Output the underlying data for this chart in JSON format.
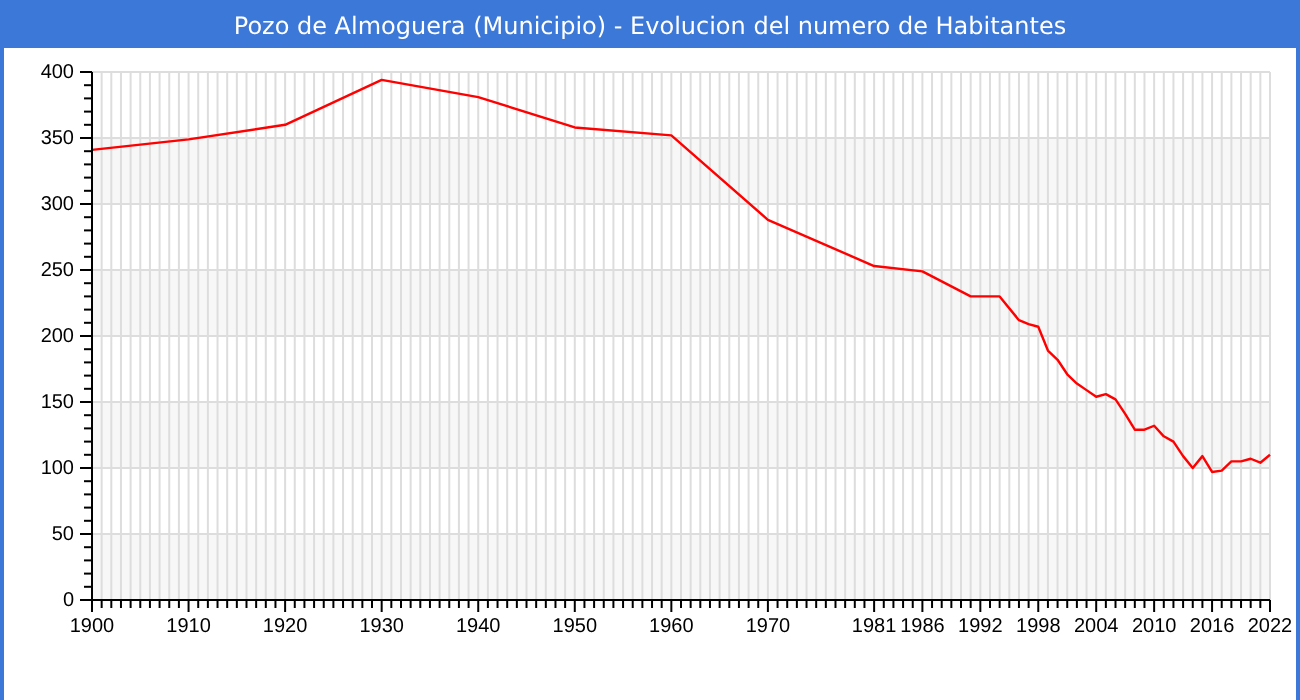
{
  "chart_data": {
    "type": "line",
    "title": "Pozo de Almoguera (Municipio) - Evolucion del numero de Habitantes",
    "x": [
      1900,
      1910,
      1920,
      1930,
      1940,
      1950,
      1960,
      1970,
      1981,
      1986,
      1991,
      1994,
      1996,
      1997,
      1998,
      1999,
      2000,
      2001,
      2002,
      2003,
      2004,
      2005,
      2006,
      2007,
      2008,
      2009,
      2010,
      2011,
      2012,
      2013,
      2014,
      2015,
      2016,
      2017,
      2018,
      2019,
      2020,
      2021,
      2022
    ],
    "series": [
      {
        "color": "#ff0000",
        "values": [
          341,
          349,
          360,
          394,
          381,
          358,
          352,
          288,
          253,
          249,
          230,
          230,
          212,
          209,
          207,
          189,
          182,
          171,
          164,
          159,
          154,
          156,
          152,
          141,
          129,
          129,
          132,
          124,
          120,
          109,
          100,
          109,
          97,
          98,
          105,
          105,
          107,
          104,
          110
        ]
      }
    ],
    "xlim": [
      1900,
      2022
    ],
    "xticks": [
      1900,
      {
        "value": 1901,
        "label": null
      },
      {
        "value": 1902,
        "label": null
      },
      {
        "value": 1903,
        "label": null
      },
      {
        "value": 1904,
        "label": null
      },
      {
        "value": 1905,
        "label": null
      },
      {
        "value": 1906,
        "label": null
      },
      {
        "value": 1907,
        "label": null
      },
      {
        "value": 1908,
        "label": null
      },
      {
        "value": 1909,
        "label": null
      },
      1910,
      {
        "value": 1911,
        "label": null
      },
      {
        "value": 1912,
        "label": null
      },
      {
        "value": 1913,
        "label": null
      },
      {
        "value": 1914,
        "label": null
      },
      {
        "value": 1915,
        "label": null
      },
      {
        "value": 1916,
        "label": null
      },
      {
        "value": 1917,
        "label": null
      },
      {
        "value": 1918,
        "label": null
      },
      {
        "value": 1919,
        "label": null
      },
      1920,
      {
        "value": 1921,
        "label": null
      },
      {
        "value": 1922,
        "label": null
      },
      {
        "value": 1923,
        "label": null
      },
      {
        "value": 1924,
        "label": null
      },
      {
        "value": 1925,
        "label": null
      },
      {
        "value": 1926,
        "label": null
      },
      {
        "value": 1927,
        "label": null
      },
      {
        "value": 1928,
        "label": null
      },
      {
        "value": 1929,
        "label": null
      },
      1930,
      {
        "value": 1931,
        "label": null
      },
      {
        "value": 1932,
        "label": null
      },
      {
        "value": 1933,
        "label": null
      },
      {
        "value": 1934,
        "label": null
      },
      {
        "value": 1935,
        "label": null
      },
      {
        "value": 1936,
        "label": null
      },
      {
        "value": 1937,
        "label": null
      },
      {
        "value": 1938,
        "label": null
      },
      {
        "value": 1939,
        "label": null
      },
      1940,
      {
        "value": 1941,
        "label": null
      },
      {
        "value": 1942,
        "label": null
      },
      {
        "value": 1943,
        "label": null
      },
      {
        "value": 1944,
        "label": null
      },
      {
        "value": 1945,
        "label": null
      },
      {
        "value": 1946,
        "label": null
      },
      {
        "value": 1947,
        "label": null
      },
      {
        "value": 1948,
        "label": null
      },
      {
        "value": 1949,
        "label": null
      },
      1950,
      {
        "value": 1951,
        "label": null
      },
      {
        "value": 1952,
        "label": null
      },
      {
        "value": 1953,
        "label": null
      },
      {
        "value": 1954,
        "label": null
      },
      {
        "value": 1955,
        "label": null
      },
      {
        "value": 1956,
        "label": null
      },
      {
        "value": 1957,
        "label": null
      },
      {
        "value": 1958,
        "label": null
      },
      {
        "value": 1959,
        "label": null
      },
      1960,
      {
        "value": 1961,
        "label": null
      },
      {
        "value": 1962,
        "label": null
      },
      {
        "value": 1963,
        "label": null
      },
      {
        "value": 1964,
        "label": null
      },
      {
        "value": 1965,
        "label": null
      },
      {
        "value": 1966,
        "label": null
      },
      {
        "value": 1967,
        "label": null
      },
      {
        "value": 1968,
        "label": null
      },
      {
        "value": 1969,
        "label": null
      },
      1970,
      {
        "value": 1971,
        "label": null
      },
      {
        "value": 1972,
        "label": null
      },
      {
        "value": 1973,
        "label": null
      },
      {
        "value": 1974,
        "label": null
      },
      {
        "value": 1975,
        "label": null
      },
      {
        "value": 1976,
        "label": null
      },
      {
        "value": 1977,
        "label": null
      },
      {
        "value": 1978,
        "label": null
      },
      {
        "value": 1979,
        "label": null
      },
      {
        "value": 1980,
        "label": null
      },
      1981,
      {
        "value": 1982,
        "label": null
      },
      {
        "value": 1983,
        "label": null
      },
      {
        "value": 1984,
        "label": null
      },
      {
        "value": 1985,
        "label": null
      },
      1986,
      {
        "value": 1987,
        "label": null
      },
      {
        "value": 1988,
        "label": null
      },
      {
        "value": 1989,
        "label": null
      },
      {
        "value": 1990,
        "label": null
      },
      {
        "value": 1991,
        "label": null
      },
      1992,
      {
        "value": 1993,
        "label": null
      },
      {
        "value": 1994,
        "label": null
      },
      {
        "value": 1995,
        "label": null
      },
      {
        "value": 1996,
        "label": null
      },
      {
        "value": 1997,
        "label": null
      },
      1998,
      {
        "value": 1999,
        "label": null
      },
      {
        "value": 2000,
        "label": null
      },
      {
        "value": 2001,
        "label": null
      },
      {
        "value": 2002,
        "label": null
      },
      {
        "value": 2003,
        "label": null
      },
      2004,
      {
        "value": 2005,
        "label": null
      },
      {
        "value": 2006,
        "label": null
      },
      {
        "value": 2007,
        "label": null
      },
      {
        "value": 2008,
        "label": null
      },
      {
        "value": 2009,
        "label": null
      },
      2010,
      {
        "value": 2011,
        "label": null
      },
      {
        "value": 2012,
        "label": null
      },
      {
        "value": 2013,
        "label": null
      },
      {
        "value": 2014,
        "label": null
      },
      {
        "value": 2015,
        "label": null
      },
      2016,
      {
        "value": 2017,
        "label": null
      },
      {
        "value": 2018,
        "label": null
      },
      {
        "value": 2019,
        "label": null
      },
      {
        "value": 2020,
        "label": null
      },
      {
        "value": 2021,
        "label": null
      },
      2022
    ],
    "ylim": [
      0,
      400
    ],
    "yticks": [
      0,
      {
        "value": 10,
        "label": null
      },
      {
        "value": 20,
        "label": null
      },
      {
        "value": 30,
        "label": null
      },
      {
        "value": 40,
        "label": null
      },
      50,
      {
        "value": 60,
        "label": null
      },
      {
        "value": 70,
        "label": null
      },
      {
        "value": 80,
        "label": null
      },
      {
        "value": 90,
        "label": null
      },
      100,
      {
        "value": 110,
        "label": null
      },
      {
        "value": 120,
        "label": null
      },
      {
        "value": 130,
        "label": null
      },
      {
        "value": 140,
        "label": null
      },
      150,
      {
        "value": 160,
        "label": null
      },
      {
        "value": 170,
        "label": null
      },
      {
        "value": 180,
        "label": null
      },
      {
        "value": 190,
        "label": null
      },
      200,
      {
        "value": 210,
        "label": null
      },
      {
        "value": 220,
        "label": null
      },
      {
        "value": 230,
        "label": null
      },
      {
        "value": 240,
        "label": null
      },
      250,
      {
        "value": 260,
        "label": null
      },
      {
        "value": 270,
        "label": null
      },
      {
        "value": 280,
        "label": null
      },
      {
        "value": 290,
        "label": null
      },
      300,
      {
        "value": 310,
        "label": null
      },
      {
        "value": 320,
        "label": null
      },
      {
        "value": 330,
        "label": null
      },
      {
        "value": 340,
        "label": null
      },
      350,
      {
        "value": 360,
        "label": null
      },
      {
        "value": 370,
        "label": null
      },
      {
        "value": 380,
        "label": null
      },
      {
        "value": 390,
        "label": null
      },
      400
    ],
    "grid": true,
    "marker": "none",
    "line_style": "solid"
  }
}
